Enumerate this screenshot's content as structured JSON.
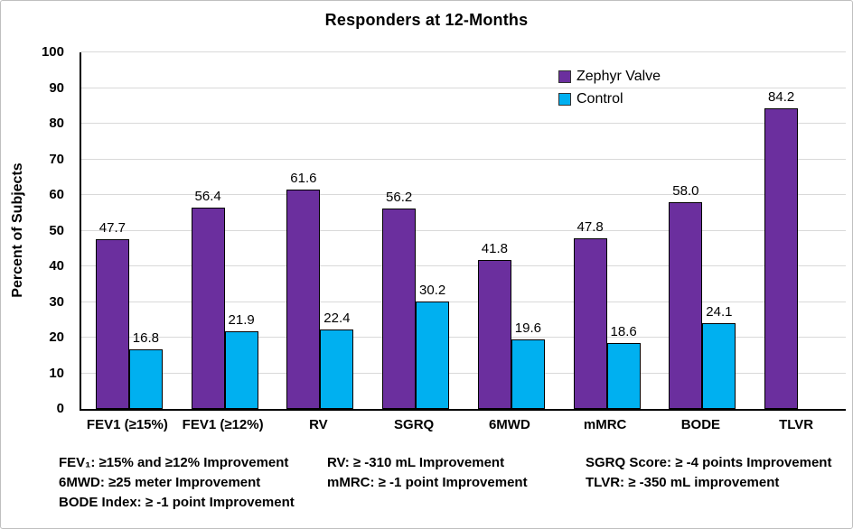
{
  "chart_data": {
    "type": "bar",
    "title": "Responders at 12-Months",
    "ylabel": "Percent of Subjects",
    "ylim": [
      0,
      100
    ],
    "ytick_step": 10,
    "grid": true,
    "legend_position": "top-right-inside",
    "categories": [
      "FEV1 (≥15%)",
      "FEV1 (≥12%)",
      "RV",
      "SGRQ",
      "6MWD",
      "mMRC",
      "BODE",
      "TLVR"
    ],
    "series": [
      {
        "name": "Zephyr Valve",
        "color": "#6B2F9E",
        "values": [
          47.7,
          56.4,
          61.6,
          56.2,
          41.8,
          47.8,
          58.0,
          84.2
        ]
      },
      {
        "name": "Control",
        "color": "#00B0F0",
        "values": [
          16.8,
          21.9,
          22.4,
          30.2,
          19.6,
          18.6,
          24.1,
          null
        ]
      }
    ],
    "value_label_decimals": 1
  },
  "footnotes": {
    "col1": [
      "FEV₁: ≥15% and ≥12% Improvement",
      "6MWD: ≥25 meter Improvement",
      "BODE Index: ≥ -1 point Improvement"
    ],
    "col2": [
      "RV: ≥ -310 mL Improvement",
      "mMRC: ≥ -1 point Improvement"
    ],
    "col3": [
      "SGRQ Score: ≥ -4 points Improvement",
      "TLVR: ≥ -350 mL improvement"
    ]
  },
  "colors": {
    "grid": "#D9D9D9",
    "axis": "#000000",
    "canvas_border": "#BFBFBF"
  }
}
